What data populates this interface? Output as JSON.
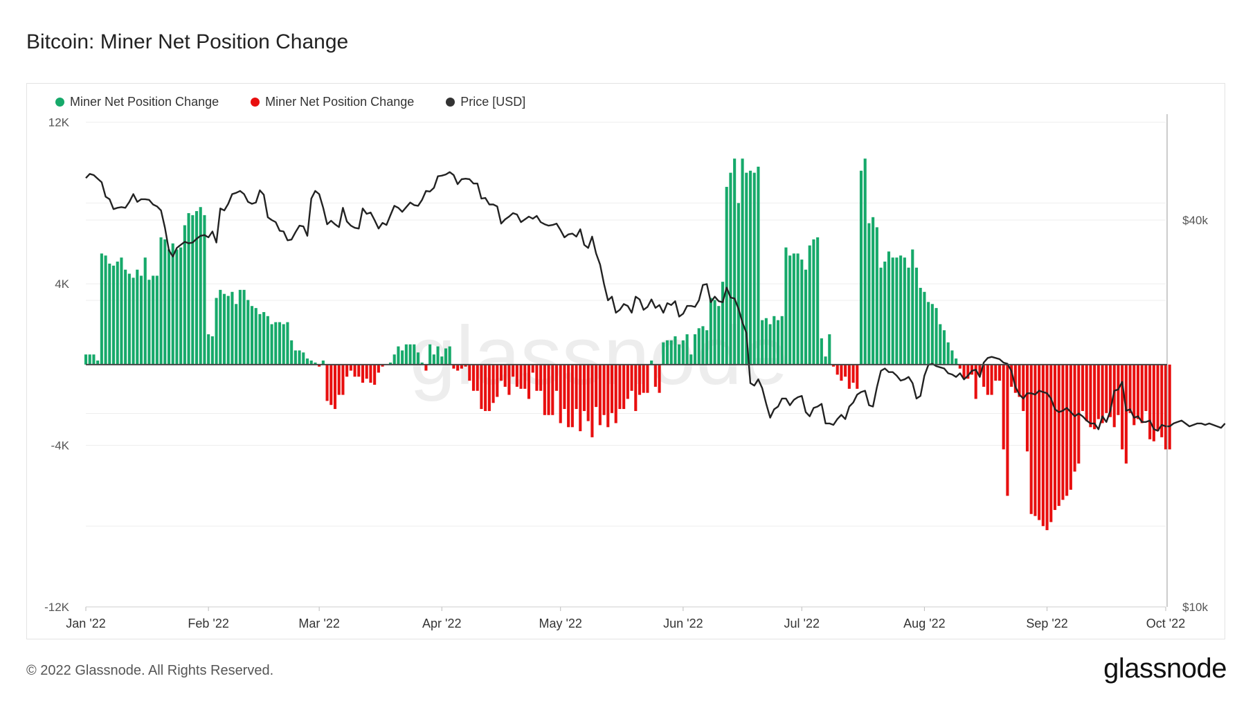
{
  "title": "Bitcoin: Miner Net Position Change",
  "legend": [
    {
      "label": "Miner Net Position Change",
      "color": "#16a96a"
    },
    {
      "label": "Miner Net Position Change",
      "color": "#e80f0f"
    },
    {
      "label": "Price [USD]",
      "color": "#333333"
    }
  ],
  "footer": "© 2022 Glassnode. All Rights Reserved.",
  "brand": "glassnode",
  "watermark": "glassnode",
  "colors": {
    "positive": "#16a96a",
    "negative": "#e80f0f",
    "price": "#222222",
    "grid": "#eeeeee"
  },
  "chart_data": {
    "type": "bar",
    "title": "Bitcoin: Miner Net Position Change",
    "x_ticks": [
      {
        "label": "Jan '22",
        "date": "2022-01-01"
      },
      {
        "label": "Feb '22",
        "date": "2022-02-01"
      },
      {
        "label": "Mar '22",
        "date": "2022-03-01"
      },
      {
        "label": "Apr '22",
        "date": "2022-04-01"
      },
      {
        "label": "May '22",
        "date": "2022-05-01"
      },
      {
        "label": "Jun '22",
        "date": "2022-06-01"
      },
      {
        "label": "Jul '22",
        "date": "2022-07-01"
      },
      {
        "label": "Aug '22",
        "date": "2022-08-01"
      },
      {
        "label": "Sep '22",
        "date": "2022-09-01"
      },
      {
        "label": "Oct '22",
        "date": "2022-10-01"
      }
    ],
    "y_left": {
      "ticks": [
        {
          "value": 12000,
          "label": "12K"
        },
        {
          "value": 4000,
          "label": "4K"
        },
        {
          "value": -4000,
          "label": "-4K"
        },
        {
          "value": -12000,
          "label": "-12K"
        }
      ],
      "range": [
        -12000,
        12400
      ]
    },
    "y_right": {
      "scale": "log",
      "ticks": [
        {
          "value": 40000,
          "label": "$40k"
        },
        {
          "value": 10000,
          "label": "$10k"
        }
      ],
      "range": [
        10000,
        60000
      ]
    },
    "grid": true,
    "legend_position": "top-left",
    "series": [
      {
        "name": "Miner Net Position Change",
        "axis": "left",
        "start_date": "2022-01-01",
        "step_days": 1,
        "values": [
          500,
          500,
          500,
          200,
          5500,
          5400,
          5000,
          4900,
          5100,
          5300,
          4700,
          4500,
          4300,
          4700,
          4400,
          5300,
          4200,
          4400,
          4400,
          6300,
          6200,
          5700,
          6000,
          5700,
          5800,
          6900,
          7500,
          7400,
          7600,
          7800,
          7400,
          1500,
          1400,
          3300,
          3700,
          3500,
          3400,
          3600,
          3000,
          3700,
          3700,
          3200,
          2900,
          2800,
          2500,
          2600,
          2400,
          2000,
          2100,
          2100,
          2000,
          2100,
          1200,
          700,
          700,
          600,
          300,
          200,
          100,
          -100,
          200,
          -1800,
          -2000,
          -2200,
          -1500,
          -1500,
          -600,
          -300,
          -600,
          -600,
          -900,
          -700,
          -900,
          -1000,
          -400,
          -100,
          0,
          100,
          500,
          900,
          700,
          1000,
          1000,
          1000,
          600,
          100,
          -300,
          1000,
          500,
          900,
          400,
          800,
          900,
          -200,
          -300,
          -200,
          -100,
          -800,
          -1300,
          -1300,
          -2200,
          -2300,
          -2300,
          -1900,
          -1600,
          -800,
          -1100,
          -1500,
          -600,
          -1100,
          -1200,
          -1200,
          -1700,
          -400,
          -1300,
          -1300,
          -2500,
          -2500,
          -2500,
          -1300,
          -2900,
          -2200,
          -3100,
          -3100,
          -2200,
          -3300,
          -2300,
          -2800,
          -3600,
          -2100,
          -3000,
          -2500,
          -3100,
          -2400,
          -2900,
          -2200,
          -2200,
          -1700,
          -1300,
          -2300,
          -1500,
          -1400,
          -1400,
          200,
          -1100,
          -1400,
          1100,
          1200,
          1200,
          1400,
          1000,
          1200,
          1500,
          500,
          1500,
          1800,
          1900,
          1700,
          3300,
          3200,
          2900,
          4100,
          8800,
          9500,
          10200,
          8000,
          10200,
          9500,
          9600,
          9500,
          9800,
          2200,
          2300,
          2000,
          2400,
          2200,
          2400,
          5800,
          5400,
          5500,
          5500,
          5200,
          4700,
          5900,
          6200,
          6300,
          1300,
          400,
          1500,
          -100,
          -500,
          -800,
          -600,
          -1200,
          -900,
          -1200,
          9600,
          10200,
          7000,
          7300,
          6800,
          4800,
          5100,
          5600,
          5300,
          5300,
          5400,
          5300,
          4800,
          5700,
          4800,
          3800,
          3600,
          3100,
          3000,
          2800,
          2000,
          1700,
          1100,
          700,
          300,
          -200,
          -700,
          -700,
          -500,
          -1700,
          -500,
          -1100,
          -1500,
          -1500,
          -800,
          -800,
          -4200,
          -6500,
          -1100,
          -1400,
          -1600,
          -2300,
          -4300,
          -7400,
          -7500,
          -7700,
          -8000,
          -8200,
          -7800,
          -7200,
          -7000,
          -6700,
          -6500,
          -6200,
          -5300,
          -4900,
          -2300,
          -2800,
          -3100,
          -3200,
          -2700,
          -2900,
          -2400,
          -2600,
          -3100,
          -2500,
          -4200,
          -4900,
          -2400,
          -3000,
          -2700,
          -2900,
          -2300,
          -3700,
          -3800,
          -3300,
          -3600,
          -4200,
          -4200
        ]
      },
      {
        "name": "Price [USD]",
        "axis": "right",
        "start_date": "2022-01-01",
        "step_days": 1,
        "values": [
          46500,
          47200,
          47000,
          46400,
          45800,
          43500,
          43100,
          41600,
          41800,
          41900,
          41800,
          42700,
          43900,
          42700,
          43100,
          43100,
          43000,
          42300,
          42000,
          41400,
          38900,
          35900,
          35100,
          36200,
          36600,
          37000,
          36800,
          36900,
          37400,
          37800,
          37900,
          37600,
          38400,
          36900,
          41700,
          41400,
          42400,
          43900,
          44100,
          44400,
          43900,
          42700,
          42400,
          42600,
          44500,
          43800,
          40400,
          40000,
          39700,
          38500,
          38400,
          37200,
          37300,
          38300,
          39200,
          39100,
          37800,
          43200,
          44400,
          43900,
          41800,
          39400,
          39900,
          39400,
          39000,
          41800,
          39800,
          39200,
          38900,
          38800,
          41700,
          40900,
          41100,
          40000,
          38800,
          39600,
          39300,
          40700,
          42100,
          41800,
          41200,
          41900,
          42600,
          42200,
          42100,
          43000,
          44400,
          44300,
          44900,
          46800,
          46900,
          47100,
          47500,
          47000,
          45500,
          46300,
          46400,
          46300,
          45600,
          45600,
          43200,
          43300,
          42300,
          42300,
          42000,
          39500,
          40100,
          40500,
          41000,
          40800,
          39700,
          40100,
          40500,
          40200,
          40600,
          39700,
          39400,
          39200,
          39300,
          39500,
          38600,
          37600,
          38000,
          38100,
          37700,
          38700,
          36600,
          36200,
          37700,
          35500,
          34100,
          31800,
          30000,
          30400,
          28700,
          29000,
          29600,
          29400,
          28700,
          30400,
          30100,
          29000,
          29300,
          30100,
          29200,
          29500,
          28700,
          29700,
          29500,
          29900,
          28300,
          28600,
          29400,
          29400,
          29300,
          30000,
          31700,
          31800,
          29800,
          30400,
          29900,
          29800,
          31400,
          30300,
          30200,
          29100,
          27700,
          26700,
          22300,
          22100,
          22600,
          21900,
          20700,
          19700,
          20300,
          20500,
          21100,
          21100,
          20600,
          21000,
          21200,
          21300,
          20100,
          19800,
          20400,
          20500,
          20700,
          19300,
          19300,
          19200,
          19600,
          19900,
          19600,
          20500,
          20800,
          21400,
          21600,
          21700,
          20600,
          20500,
          22000,
          23300,
          23500,
          23200,
          23200,
          22900,
          22500,
          22600,
          22800,
          22300,
          21100,
          21300,
          22900,
          23800,
          23900,
          23700,
          23600,
          23500,
          23100,
          23000,
          22800,
          23100,
          22600,
          22900,
          23300,
          23400,
          22800,
          24000,
          24400,
          24500,
          24400,
          24300,
          24000,
          23900,
          23300,
          22000,
          21400,
          21100,
          21500,
          21500,
          21400,
          21700,
          21600,
          21500,
          21100,
          20300,
          20100,
          20200,
          20400,
          20100,
          19800,
          20000,
          19800,
          19500,
          19300,
          19300,
          18900,
          19800,
          19400,
          20200,
          21700,
          21800,
          22400,
          20200,
          20300,
          19700,
          19800,
          19400,
          19400,
          19500,
          18900,
          18800,
          19200,
          19100,
          19100,
          19300,
          19400,
          19500,
          19300,
          19100,
          19200,
          19300,
          19300,
          19200,
          19300,
          19200,
          19100,
          19000,
          19300
        ]
      }
    ]
  }
}
